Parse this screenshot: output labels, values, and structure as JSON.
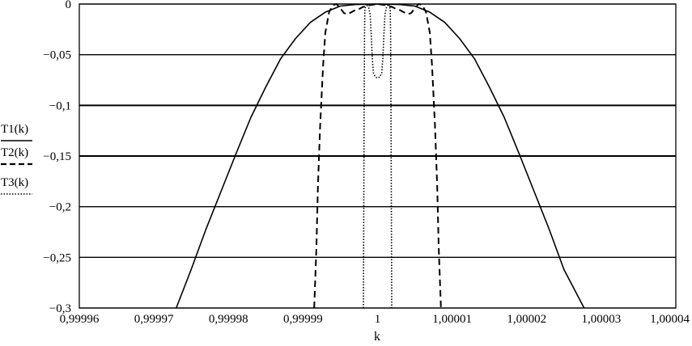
{
  "chart_data": {
    "type": "line",
    "title": "",
    "xlabel": "k",
    "ylabel": "",
    "xlim": [
      0.99996,
      1.00004
    ],
    "ylim": [
      -0.3,
      0
    ],
    "grid": "horizontal",
    "legend_position": "left",
    "x_ticks": [
      0.99996,
      0.99997,
      0.99998,
      0.99999,
      1,
      1.00001,
      1.00002,
      1.00003,
      1.00004
    ],
    "x_tick_labels": [
      "0,99996",
      "0,99997",
      "0,99998",
      "0,99999",
      "1",
      "1,00001",
      "1,00002",
      "1,00003",
      "1,00004"
    ],
    "y_ticks": [
      0,
      -0.05,
      -0.1,
      -0.15,
      -0.2,
      -0.25,
      -0.3
    ],
    "y_tick_labels": [
      "0",
      "−0,05",
      "−0,1",
      "−0,15",
      "−0,2",
      "−0,25",
      "−0,3"
    ],
    "series": [
      {
        "name": "T1(k)",
        "line_style": "solid",
        "color": "#000000",
        "points": [
          [
            0.999973,
            -0.3
          ],
          [
            0.999975,
            -0.262
          ],
          [
            0.999977,
            -0.222
          ],
          [
            0.999979,
            -0.185
          ],
          [
            0.999981,
            -0.148
          ],
          [
            0.999983,
            -0.112
          ],
          [
            0.999985,
            -0.082
          ],
          [
            0.999987,
            -0.054
          ],
          [
            0.999989,
            -0.034
          ],
          [
            0.999991,
            -0.018
          ],
          [
            0.999993,
            -0.008
          ],
          [
            0.999995,
            -0.002
          ],
          [
            0.999997,
            -0.0005
          ],
          [
            1.0,
            0.0
          ],
          [
            1.000003,
            -0.0005
          ],
          [
            1.000005,
            -0.002
          ],
          [
            1.000007,
            -0.008
          ],
          [
            1.000009,
            -0.018
          ],
          [
            1.000011,
            -0.034
          ],
          [
            1.000013,
            -0.054
          ],
          [
            1.000015,
            -0.082
          ],
          [
            1.000017,
            -0.112
          ],
          [
            1.000019,
            -0.148
          ],
          [
            1.000021,
            -0.185
          ],
          [
            1.000023,
            -0.222
          ],
          [
            1.000025,
            -0.262
          ],
          [
            1.0000277,
            -0.3
          ]
        ]
      },
      {
        "name": "T2(k)",
        "line_style": "dashed",
        "color": "#000000",
        "points": [
          [
            0.9999915,
            -0.3
          ],
          [
            0.9999918,
            -0.24
          ],
          [
            0.999992,
            -0.18
          ],
          [
            0.9999923,
            -0.12
          ],
          [
            0.9999927,
            -0.06
          ],
          [
            0.999993,
            -0.028
          ],
          [
            0.9999935,
            -0.008
          ],
          [
            0.999994,
            -0.001
          ],
          [
            0.9999945,
            -0.0
          ],
          [
            0.999995,
            -0.004
          ],
          [
            0.9999955,
            -0.009
          ],
          [
            0.999996,
            -0.01
          ],
          [
            0.9999965,
            -0.008
          ],
          [
            0.999997,
            -0.006
          ],
          [
            0.9999975,
            -0.005
          ],
          [
            0.999998,
            -0.003
          ],
          [
            0.999999,
            -0.001
          ],
          [
            1.0,
            0.0
          ],
          [
            1.000001,
            -0.001
          ],
          [
            1.000002,
            -0.003
          ],
          [
            1.0000025,
            -0.005
          ],
          [
            1.000003,
            -0.006
          ],
          [
            1.0000035,
            -0.008
          ],
          [
            1.000004,
            -0.01
          ],
          [
            1.0000045,
            -0.009
          ],
          [
            1.000005,
            -0.004
          ],
          [
            1.0000055,
            0.0
          ],
          [
            1.000006,
            -0.001
          ],
          [
            1.0000065,
            -0.008
          ],
          [
            1.000007,
            -0.028
          ],
          [
            1.0000073,
            -0.06
          ],
          [
            1.0000077,
            -0.12
          ],
          [
            1.000008,
            -0.18
          ],
          [
            1.0000082,
            -0.24
          ],
          [
            1.0000085,
            -0.3
          ]
        ]
      },
      {
        "name": "T3(k)",
        "line_style": "dotted",
        "color": "#000000",
        "points": [
          [
            0.9999981,
            -0.3
          ],
          [
            0.99999815,
            -0.2
          ],
          [
            0.9999982,
            -0.1
          ],
          [
            0.99999825,
            -0.03
          ],
          [
            0.9999983,
            -0.005
          ],
          [
            0.9999985,
            0.0
          ],
          [
            0.9999988,
            -0.003
          ],
          [
            0.999999,
            -0.01
          ],
          [
            0.99999915,
            -0.03
          ],
          [
            0.9999993,
            -0.055
          ],
          [
            0.99999945,
            -0.068
          ],
          [
            0.9999997,
            -0.072
          ],
          [
            1.0,
            -0.073
          ],
          [
            1.0000003,
            -0.072
          ],
          [
            1.00000055,
            -0.068
          ],
          [
            1.0000007,
            -0.055
          ],
          [
            1.00000085,
            -0.03
          ],
          [
            1.000001,
            -0.01
          ],
          [
            1.0000012,
            -0.003
          ],
          [
            1.0000015,
            0.0
          ],
          [
            1.0000017,
            -0.005
          ],
          [
            1.00000175,
            -0.03
          ],
          [
            1.0000018,
            -0.1
          ],
          [
            1.00000185,
            -0.2
          ],
          [
            1.0000019,
            -0.3
          ]
        ]
      }
    ]
  }
}
